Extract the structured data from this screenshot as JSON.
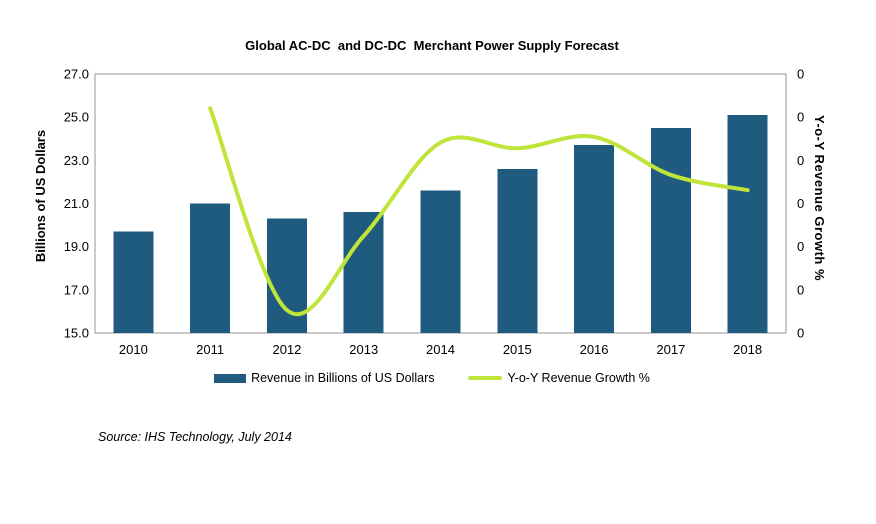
{
  "title": "Global AC-DC  and DC-DC  Merchant Power Supply Forecast",
  "source": "Source: IHS Technology, July 2014",
  "legend": {
    "bars": "Revenue in Billions of US Dollars",
    "line": "Y-o-Y Revenue Growth %"
  },
  "colors": {
    "bar": "#1F5B7E",
    "line": "#BFE43A",
    "plot_border": "#969696",
    "text": "#000000",
    "background": "#FFFFFF"
  },
  "chart_data": {
    "type": "bar",
    "subtype": "bar-and-line-combo",
    "title": "Global AC-DC  and DC-DC  Merchant Power Supply Forecast",
    "categories": [
      "2010",
      "2011",
      "2012",
      "2013",
      "2014",
      "2015",
      "2016",
      "2017",
      "2018"
    ],
    "series": [
      {
        "name": "Revenue in Billions of US Dollars",
        "type": "bar",
        "axis": "left",
        "values": [
          19.7,
          21.0,
          20.3,
          20.6,
          21.6,
          22.6,
          23.7,
          24.5,
          25.1
        ]
      },
      {
        "name": "Y-o-Y Revenue Growth %",
        "type": "line",
        "axis": "right",
        "smooth": true,
        "values": [
          null,
          6.5,
          -4.1,
          -0.2,
          4.7,
          4.4,
          5.0,
          3.0,
          2.2
        ]
      }
    ],
    "left_axis": {
      "label": "Billions of US Dollars",
      "tick_labels": [
        "27.0",
        "25.0",
        "23.0",
        "21.0",
        "19.0",
        "17.0",
        "15.0"
      ],
      "min": 15.0,
      "max": 27.0
    },
    "right_axis": {
      "label": "Y-o-Y Revenue Growth %",
      "tick_labels": [
        "0",
        "0",
        "0",
        "0",
        "0",
        "0",
        "0"
      ],
      "min": -5.3,
      "max": 8.3
    },
    "grid": false,
    "legend_position": "bottom"
  }
}
